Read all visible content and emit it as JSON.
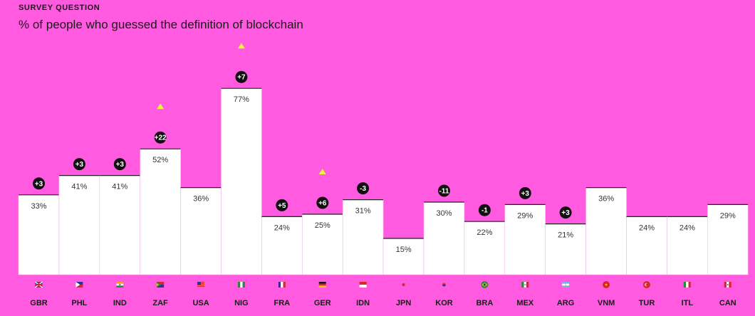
{
  "header": {
    "eyebrow": "SURVEY QUESTION",
    "question": "% of people who guessed the definition of blockchain"
  },
  "colors": {
    "background": "#ff5ae0",
    "bar": "#ffffff",
    "badge": "#111111",
    "up_triangle": "#e8f43a"
  },
  "chart_data": {
    "type": "bar",
    "title": "",
    "xlabel": "",
    "ylabel": "",
    "ylim": [
      0,
      100
    ],
    "categories": [
      "GBR",
      "PHL",
      "IND",
      "ZAF",
      "USA",
      "NIG",
      "FRA",
      "GER",
      "IDN",
      "JPN",
      "KOR",
      "BRA",
      "MEX",
      "ARG",
      "VNM",
      "TUR",
      "ITL",
      "CAN"
    ],
    "values": [
      33,
      41,
      41,
      52,
      36,
      77,
      24,
      25,
      31,
      15,
      30,
      22,
      29,
      21,
      36,
      24,
      24,
      29
    ],
    "value_labels": [
      "33%",
      "41%",
      "41%",
      "52%",
      "36%",
      "77%",
      "24%",
      "25%",
      "31%",
      "15%",
      "30%",
      "22%",
      "29%",
      "21%",
      "36%",
      "24%",
      "24%",
      "29%"
    ],
    "changes": [
      "+3",
      "+3",
      "+3",
      "+22",
      null,
      "+7",
      "+5",
      "+6",
      "-3",
      null,
      "-11",
      "-1",
      "+3",
      "+3",
      null,
      null,
      null,
      null
    ],
    "highlight_up": [
      false,
      false,
      false,
      true,
      false,
      true,
      false,
      true,
      false,
      false,
      false,
      false,
      false,
      false,
      false,
      false,
      false,
      false
    ],
    "flag_icons": [
      "flag-gbr-icon",
      "flag-phl-icon",
      "flag-ind-icon",
      "flag-zaf-icon",
      "flag-usa-icon",
      "flag-nig-icon",
      "flag-fra-icon",
      "flag-ger-icon",
      "flag-idn-icon",
      "flag-jpn-icon",
      "flag-kor-icon",
      "flag-bra-icon",
      "flag-mex-icon",
      "flag-arg-icon",
      "flag-vnm-icon",
      "flag-tur-icon",
      "flag-itl-icon",
      "flag-can-icon"
    ]
  }
}
